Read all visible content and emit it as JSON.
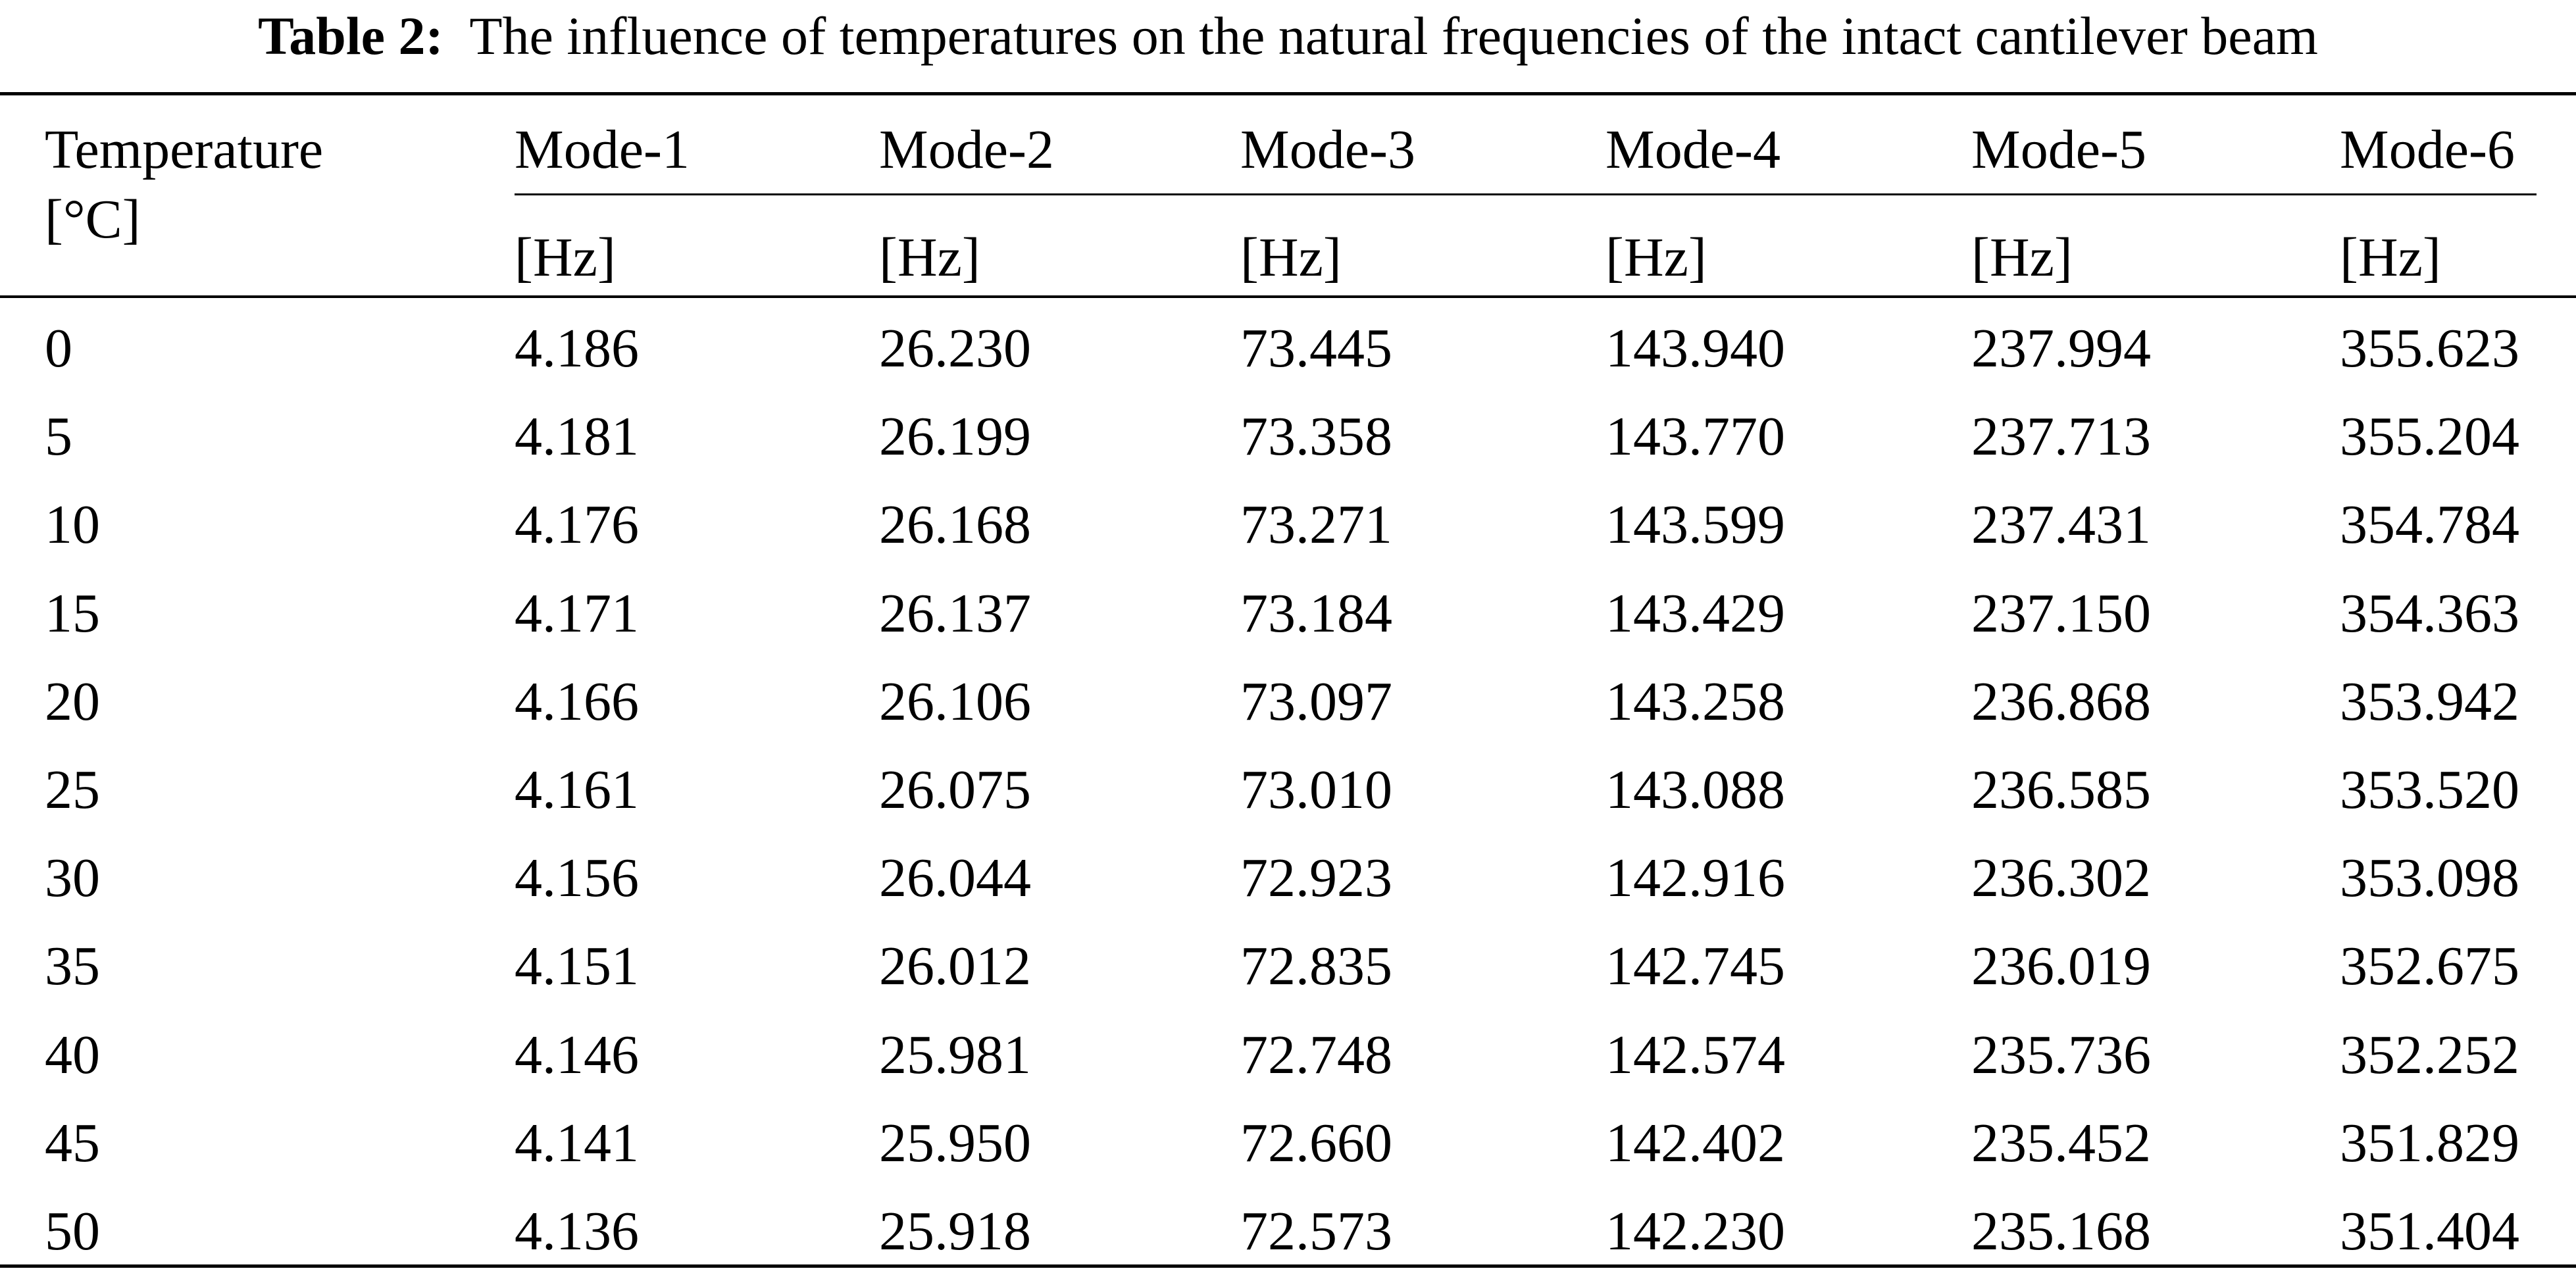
{
  "caption": {
    "label": "Table 2:",
    "text": "The influence of temperatures on the natural frequencies of the intact cantilever beam"
  },
  "header": {
    "first_col": {
      "name": "Temperature",
      "unit": "[°C]"
    },
    "modes": [
      {
        "name": "Mode-1",
        "unit": "[Hz]"
      },
      {
        "name": "Mode-2",
        "unit": "[Hz]"
      },
      {
        "name": "Mode-3",
        "unit": "[Hz]"
      },
      {
        "name": "Mode-4",
        "unit": "[Hz]"
      },
      {
        "name": "Mode-5",
        "unit": "[Hz]"
      },
      {
        "name": "Mode-6",
        "unit": "[Hz]"
      }
    ]
  },
  "rows": [
    [
      "0",
      "4.186",
      "26.230",
      "73.445",
      "143.940",
      "237.994",
      "355.623"
    ],
    [
      "5",
      "4.181",
      "26.199",
      "73.358",
      "143.770",
      "237.713",
      "355.204"
    ],
    [
      "10",
      "4.176",
      "26.168",
      "73.271",
      "143.599",
      "237.431",
      "354.784"
    ],
    [
      "15",
      "4.171",
      "26.137",
      "73.184",
      "143.429",
      "237.150",
      "354.363"
    ],
    [
      "20",
      "4.166",
      "26.106",
      "73.097",
      "143.258",
      "236.868",
      "353.942"
    ],
    [
      "25",
      "4.161",
      "26.075",
      "73.010",
      "143.088",
      "236.585",
      "353.520"
    ],
    [
      "30",
      "4.156",
      "26.044",
      "72.923",
      "142.916",
      "236.302",
      "353.098"
    ],
    [
      "35",
      "4.151",
      "26.012",
      "72.835",
      "142.745",
      "236.019",
      "352.675"
    ],
    [
      "40",
      "4.146",
      "25.981",
      "72.748",
      "142.574",
      "235.736",
      "352.252"
    ],
    [
      "45",
      "4.141",
      "25.950",
      "72.660",
      "142.402",
      "235.452",
      "351.829"
    ],
    [
      "50",
      "4.136",
      "25.918",
      "72.573",
      "142.230",
      "235.168",
      "351.404"
    ]
  ]
}
